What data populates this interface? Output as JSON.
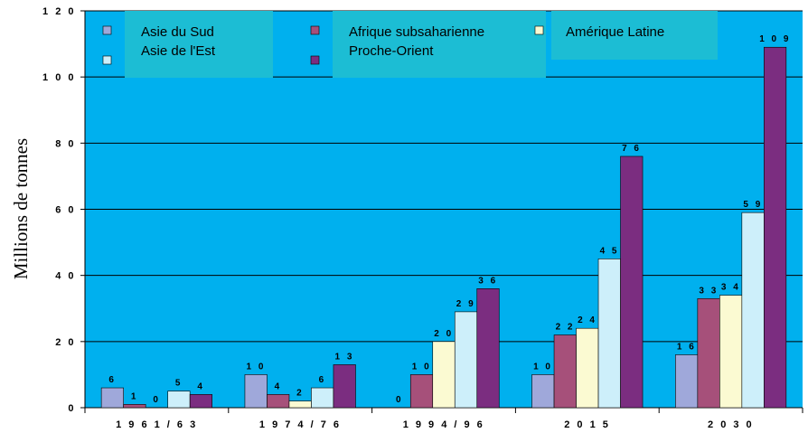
{
  "chart_data": {
    "type": "bar",
    "title": "",
    "xlabel": "",
    "ylabel": "Millions de tonnes",
    "ylim": [
      0,
      120
    ],
    "yticks": [
      0,
      20,
      40,
      60,
      80,
      100,
      120
    ],
    "ytick_labels": [
      "0",
      "2 0",
      "4 0",
      "6 0",
      "8 0",
      "1 0 0",
      "1 2 0"
    ],
    "categories": [
      "1961/63",
      "1974/76",
      "1994/96",
      "2015",
      "2030"
    ],
    "category_labels": [
      "1 9 6 1 / 6 3",
      "1 9 7 4 / 7 6",
      "1 9 9 4 / 9 6",
      "2 0 1 5",
      "2 0 3 0"
    ],
    "grid": true,
    "legend_position": "top",
    "series": [
      {
        "name": "Asie du Sud",
        "color": "#9FA8DA",
        "values": [
          6,
          10,
          0,
          10,
          16
        ],
        "labels": [
          "6",
          "1 0",
          "0",
          "1 0",
          "1 6"
        ]
      },
      {
        "name": "Afrique subsaharienne",
        "color": "#A6507A",
        "values": [
          1,
          4,
          10,
          22,
          33
        ],
        "labels": [
          "1",
          "4",
          "1 0",
          "2 2",
          "3 3"
        ]
      },
      {
        "name": "Amérique Latine",
        "color": "#FBFAD2",
        "values": [
          0,
          2,
          20,
          24,
          34
        ],
        "labels": [
          "0",
          "2",
          "2 0",
          "2 4",
          "3 4"
        ]
      },
      {
        "name": "Asie de l'Est",
        "color": "#CDEFFA",
        "values": [
          5,
          6,
          29,
          45,
          59
        ],
        "labels": [
          "5",
          "6",
          "2 9",
          "4 5",
          "5 9"
        ]
      },
      {
        "name": "Proche-Orient",
        "color": "#7B2D80",
        "values": [
          4,
          13,
          36,
          76,
          109
        ],
        "labels": [
          "4",
          "1 3",
          "3 6",
          "7 6",
          "1 0 9"
        ]
      }
    ],
    "colors": {
      "plot_background": "#00B0EE",
      "legend_box": "#1CBDD4",
      "gridline": "#000000"
    }
  }
}
